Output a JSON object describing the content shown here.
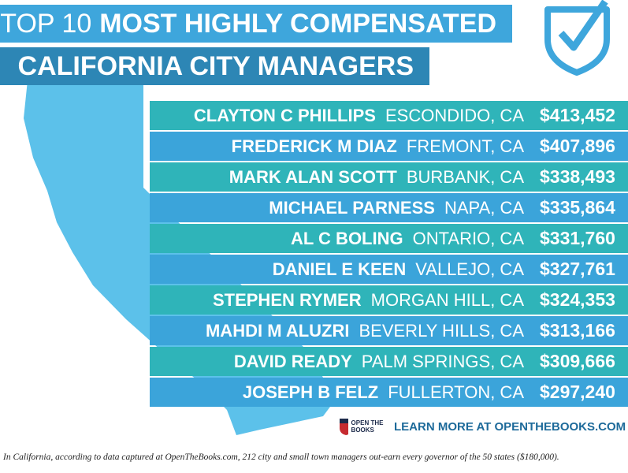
{
  "header": {
    "title_light": "TOP 10",
    "title_bold": "MOST HIGHLY COMPENSATED",
    "subtitle": "CALIFORNIA CITY MANAGERS"
  },
  "rows": [
    {
      "name": "CLAYTON C PHILLIPS",
      "city": "ESCONDIDO, CA",
      "salary": "$413,452"
    },
    {
      "name": "FREDERICK M DIAZ",
      "city": "FREMONT, CA",
      "salary": "$407,896"
    },
    {
      "name": "MARK ALAN SCOTT",
      "city": "BURBANK, CA",
      "salary": "$338,493"
    },
    {
      "name": "MICHAEL PARNESS",
      "city": "NAPA, CA",
      "salary": "$335,864"
    },
    {
      "name": "AL C BOLING",
      "city": "ONTARIO, CA",
      "salary": "$331,760"
    },
    {
      "name": "DANIEL E KEEN",
      "city": "VALLEJO, CA",
      "salary": "$327,761"
    },
    {
      "name": "STEPHEN RYMER",
      "city": "MORGAN HILL, CA",
      "salary": "$324,353"
    },
    {
      "name": "MAHDI M ALUZRI",
      "city": "BEVERLY HILLS, CA",
      "salary": "$313,166"
    },
    {
      "name": "DAVID READY",
      "city": "PALM SPRINGS, CA",
      "salary": "$309,666"
    },
    {
      "name": "JOSEPH B FELZ",
      "city": "FULLERTON, CA",
      "salary": "$297,240"
    }
  ],
  "footer": {
    "logo": "OPEN THE BOOKS",
    "cta": "LEARN MORE AT OPENTHEBOOKS.COM"
  },
  "caption": "In California, according to data captured at OpenTheBooks.com, 212 city and small town managers out-earn every governor of the 50 states ($180,000)."
}
